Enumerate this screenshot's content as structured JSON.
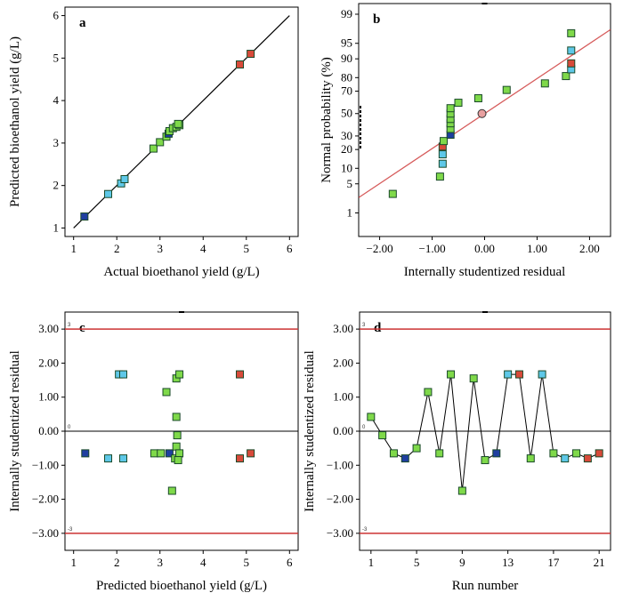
{
  "colors": {
    "green": "#7fd94a",
    "cyan": "#5ec8e8",
    "blue": "#1f3fa0",
    "red": "#d84a3a",
    "redline": "#cc3333",
    "dark": "#1a4a2a"
  },
  "chart_data": [
    {
      "id": "a",
      "type": "scatter",
      "label": "a",
      "xlabel": "Actual bioethanol yield (g/L)",
      "ylabel": "Predicted bioethanol yield (g/L)",
      "xlim": [
        0.8,
        6.2
      ],
      "ylim": [
        0.8,
        6.2
      ],
      "xticks": [
        "1",
        "2",
        "3",
        "4",
        "5",
        "6"
      ],
      "yticks": [
        "1",
        "2",
        "3",
        "4",
        "5",
        "6"
      ],
      "line": [
        [
          1,
          1
        ],
        [
          6,
          6
        ]
      ],
      "points": [
        {
          "x": 1.25,
          "y": 1.27,
          "c": "blue"
        },
        {
          "x": 1.8,
          "y": 1.8,
          "c": "cyan"
        },
        {
          "x": 2.1,
          "y": 2.05,
          "c": "cyan"
        },
        {
          "x": 2.18,
          "y": 2.15,
          "c": "cyan"
        },
        {
          "x": 2.85,
          "y": 2.87,
          "c": "green"
        },
        {
          "x": 3.0,
          "y": 3.02,
          "c": "green"
        },
        {
          "x": 3.15,
          "y": 3.15,
          "c": "green"
        },
        {
          "x": 3.2,
          "y": 3.22,
          "c": "blue"
        },
        {
          "x": 3.22,
          "y": 3.28,
          "c": "green"
        },
        {
          "x": 3.3,
          "y": 3.35,
          "c": "green"
        },
        {
          "x": 3.38,
          "y": 3.38,
          "c": "green"
        },
        {
          "x": 3.45,
          "y": 3.42,
          "c": "green"
        },
        {
          "x": 3.42,
          "y": 3.45,
          "c": "green"
        },
        {
          "x": 4.85,
          "y": 4.85,
          "c": "red"
        },
        {
          "x": 5.1,
          "y": 5.1,
          "c": "red"
        }
      ]
    },
    {
      "id": "b",
      "type": "scatter",
      "label": "b",
      "xlabel": "Internally studentized residual",
      "ylabel": "Normal probability (%)",
      "xlim": [
        -2.4,
        2.4
      ],
      "xticks": [
        "-2.00",
        "-1.00",
        "0.00",
        "1.00",
        "2.00"
      ],
      "yticks": [
        "1",
        "5",
        "10",
        "20",
        "30",
        "50",
        "70",
        "80",
        "90",
        "95",
        "99"
      ],
      "points": [
        {
          "x": -1.75,
          "y": 3,
          "c": "green"
        },
        {
          "x": -0.85,
          "y": 7,
          "c": "green"
        },
        {
          "x": -0.8,
          "y": 12,
          "c": "cyan"
        },
        {
          "x": -0.8,
          "y": 17,
          "c": "cyan"
        },
        {
          "x": -0.8,
          "y": 22,
          "c": "red"
        },
        {
          "x": -0.78,
          "y": 26,
          "c": "green"
        },
        {
          "x": -0.65,
          "y": 31,
          "c": "blue"
        },
        {
          "x": -0.65,
          "y": 36,
          "c": "green"
        },
        {
          "x": -0.65,
          "y": 41,
          "c": "green"
        },
        {
          "x": -0.65,
          "y": 45,
          "c": "green"
        },
        {
          "x": -0.65,
          "y": 50,
          "c": "green"
        },
        {
          "x": -0.65,
          "y": 55,
          "c": "green"
        },
        {
          "x": -0.5,
          "y": 60,
          "c": "green"
        },
        {
          "x": -0.12,
          "y": 64,
          "c": "green"
        },
        {
          "x": 0.42,
          "y": 71,
          "c": "green"
        },
        {
          "x": 1.15,
          "y": 76,
          "c": "green"
        },
        {
          "x": 1.55,
          "y": 81,
          "c": "green"
        },
        {
          "x": 1.65,
          "y": 85,
          "c": "cyan"
        },
        {
          "x": 1.65,
          "y": 88,
          "c": "red"
        },
        {
          "x": 1.65,
          "y": 93,
          "c": "cyan"
        },
        {
          "x": 1.65,
          "y": 97,
          "c": "green"
        }
      ],
      "marker": {
        "x": -0.05,
        "y": 50
      }
    },
    {
      "id": "c",
      "type": "scatter",
      "label": "c",
      "xlabel": "Predicted bioethanol yield (g/L)",
      "ylabel": "Internally studentized residual",
      "xlim": [
        0.8,
        6.2
      ],
      "ylim": [
        -3.5,
        3.5
      ],
      "xticks": [
        "1",
        "2",
        "3",
        "4",
        "5",
        "6"
      ],
      "yticks": [
        "-3.00",
        "-2.00",
        "-1.00",
        "0.00",
        "1.00",
        "2.00",
        "3.00"
      ],
      "limits": [
        3,
        0,
        -3
      ],
      "limit_labels": [
        "3",
        "0",
        "-3"
      ],
      "points": [
        {
          "x": 1.27,
          "y": -0.65,
          "c": "blue"
        },
        {
          "x": 1.8,
          "y": -0.8,
          "c": "cyan"
        },
        {
          "x": 2.05,
          "y": 1.67,
          "c": "cyan"
        },
        {
          "x": 2.15,
          "y": 1.67,
          "c": "cyan"
        },
        {
          "x": 2.15,
          "y": -0.8,
          "c": "cyan"
        },
        {
          "x": 2.87,
          "y": -0.65,
          "c": "green"
        },
        {
          "x": 3.02,
          "y": -0.65,
          "c": "green"
        },
        {
          "x": 3.15,
          "y": 1.15,
          "c": "green"
        },
        {
          "x": 3.22,
          "y": -0.65,
          "c": "blue"
        },
        {
          "x": 3.28,
          "y": -1.75,
          "c": "green"
        },
        {
          "x": 3.35,
          "y": -0.8,
          "c": "green"
        },
        {
          "x": 3.38,
          "y": -0.45,
          "c": "green"
        },
        {
          "x": 3.4,
          "y": -0.12,
          "c": "green"
        },
        {
          "x": 3.38,
          "y": 0.42,
          "c": "green"
        },
        {
          "x": 3.38,
          "y": 1.55,
          "c": "green"
        },
        {
          "x": 3.45,
          "y": 1.67,
          "c": "green"
        },
        {
          "x": 3.45,
          "y": -0.65,
          "c": "green"
        },
        {
          "x": 3.42,
          "y": -0.85,
          "c": "green"
        },
        {
          "x": 4.85,
          "y": 1.67,
          "c": "red"
        },
        {
          "x": 4.85,
          "y": -0.8,
          "c": "red"
        },
        {
          "x": 5.1,
          "y": -0.65,
          "c": "red"
        }
      ]
    },
    {
      "id": "d",
      "type": "line",
      "label": "d",
      "xlabel": "Run number",
      "ylabel": "Internally studentized residual",
      "xlim": [
        0,
        22
      ],
      "ylim": [
        -3.5,
        3.5
      ],
      "xticks": [
        "1",
        "5",
        "9",
        "13",
        "17",
        "21"
      ],
      "yticks": [
        "-3.00",
        "-2.00",
        "-1.00",
        "0.00",
        "1.00",
        "2.00",
        "3.00"
      ],
      "limits": [
        3,
        0,
        -3
      ],
      "limit_labels": [
        "3",
        "0",
        "-3"
      ],
      "points": [
        {
          "x": 1,
          "y": 0.42,
          "c": "green"
        },
        {
          "x": 2,
          "y": -0.12,
          "c": "green"
        },
        {
          "x": 3,
          "y": -0.65,
          "c": "green"
        },
        {
          "x": 4,
          "y": -0.8,
          "c": "blue"
        },
        {
          "x": 5,
          "y": -0.5,
          "c": "green"
        },
        {
          "x": 6,
          "y": 1.15,
          "c": "green"
        },
        {
          "x": 7,
          "y": -0.65,
          "c": "green"
        },
        {
          "x": 8,
          "y": 1.67,
          "c": "green"
        },
        {
          "x": 9,
          "y": -1.75,
          "c": "green"
        },
        {
          "x": 10,
          "y": 1.55,
          "c": "green"
        },
        {
          "x": 11,
          "y": -0.85,
          "c": "green"
        },
        {
          "x": 12,
          "y": -0.65,
          "c": "blue"
        },
        {
          "x": 13,
          "y": 1.67,
          "c": "cyan"
        },
        {
          "x": 14,
          "y": 1.67,
          "c": "red"
        },
        {
          "x": 15,
          "y": -0.8,
          "c": "green"
        },
        {
          "x": 16,
          "y": 1.67,
          "c": "cyan"
        },
        {
          "x": 17,
          "y": -0.65,
          "c": "green"
        },
        {
          "x": 18,
          "y": -0.8,
          "c": "cyan"
        },
        {
          "x": 19,
          "y": -0.65,
          "c": "green"
        },
        {
          "x": 20,
          "y": -0.8,
          "c": "red"
        },
        {
          "x": 21,
          "y": -0.65,
          "c": "red"
        }
      ]
    }
  ]
}
